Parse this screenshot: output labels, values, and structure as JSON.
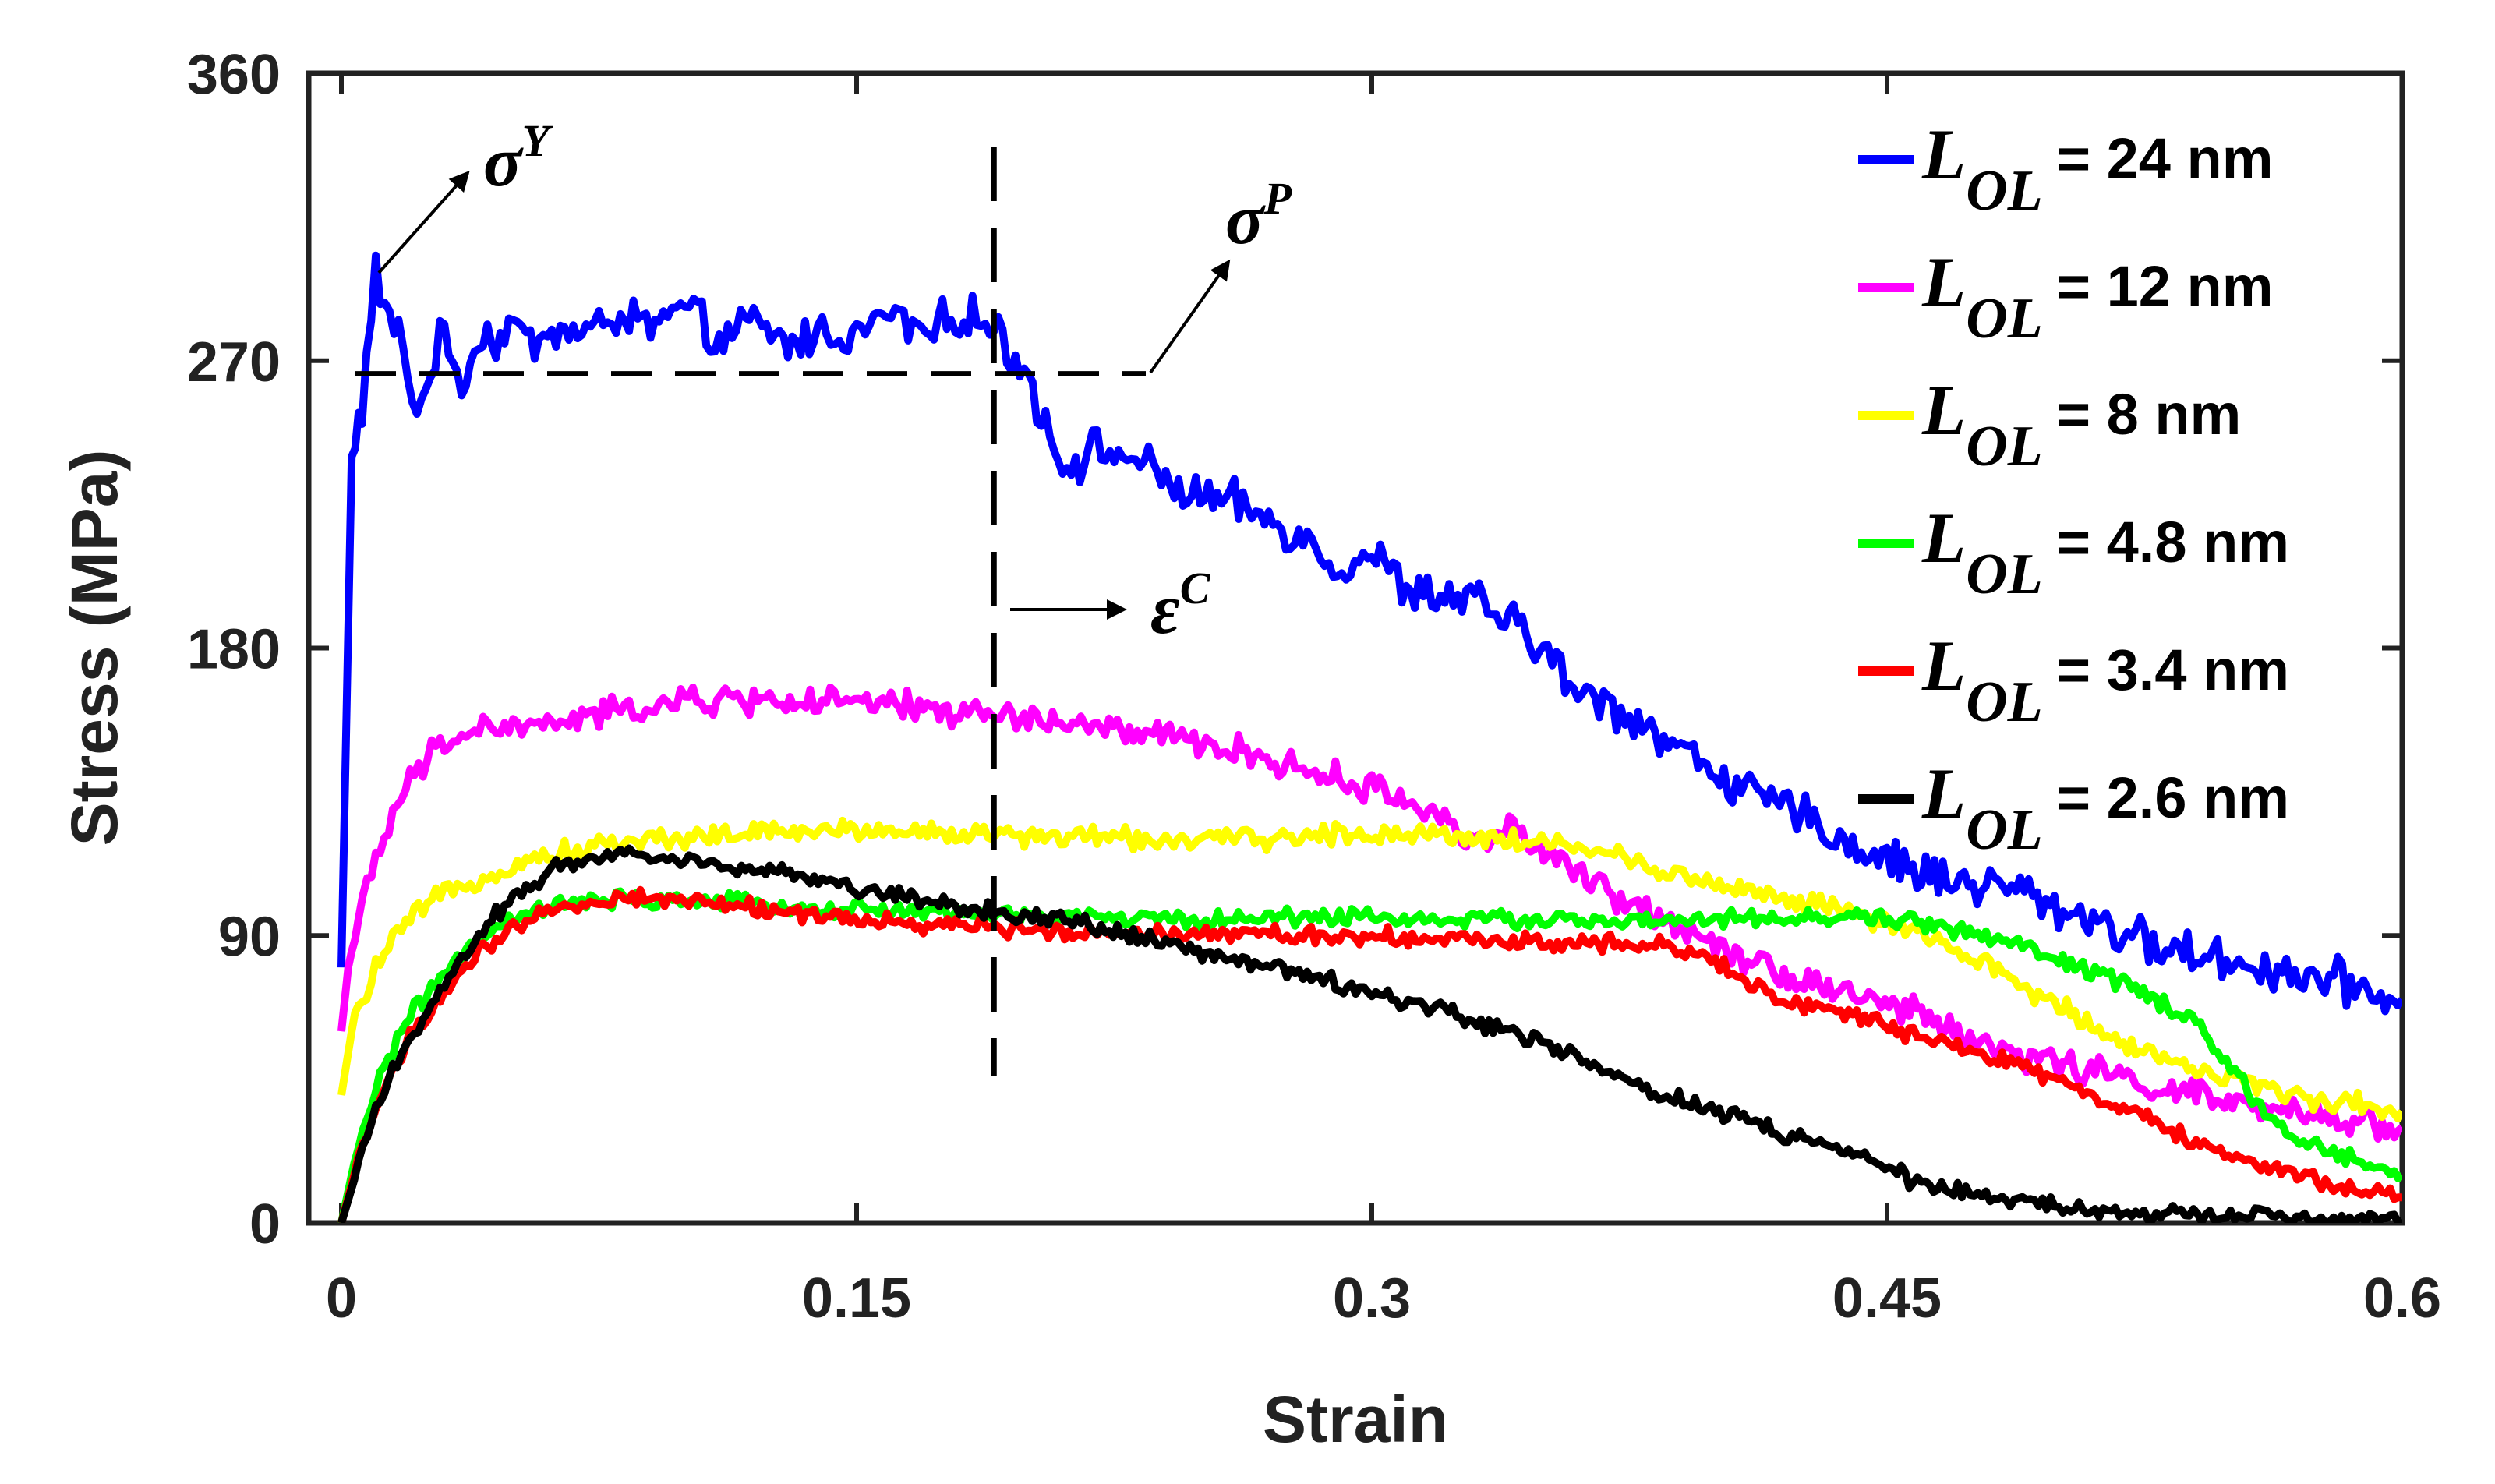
{
  "chart_data": {
    "type": "line",
    "title": "",
    "xlabel": "Strain",
    "ylabel": "Stress (MPa)",
    "xlim": [
      0,
      0.6
    ],
    "ylim": [
      0,
      360
    ],
    "xticks": [
      0,
      0.15,
      0.3,
      0.45,
      0.6
    ],
    "xtick_labels": [
      "0",
      "0.15",
      "0.3",
      "0.45",
      "0.6"
    ],
    "yticks": [
      0,
      90,
      180,
      270,
      360
    ],
    "ytick_labels": [
      "0",
      "90",
      "180",
      "270",
      "360"
    ],
    "grid": false,
    "legend_position": "top-right",
    "legend_symbol": "L",
    "legend_subscript": "OL",
    "series": [
      {
        "name": "24 nm",
        "label_suffix": "= 24 nm",
        "color": "#0000ff",
        "x": [
          0,
          0.003,
          0.006,
          0.01,
          0.014,
          0.018,
          0.022,
          0.026,
          0.03,
          0.035,
          0.04,
          0.045,
          0.05,
          0.055,
          0.06,
          0.07,
          0.08,
          0.09,
          0.1,
          0.11,
          0.12,
          0.13,
          0.14,
          0.15,
          0.16,
          0.17,
          0.18,
          0.19,
          0.2,
          0.21,
          0.22,
          0.23,
          0.24,
          0.25,
          0.26,
          0.27,
          0.28,
          0.29,
          0.3,
          0.31,
          0.32,
          0.33,
          0.34,
          0.35,
          0.36,
          0.37,
          0.38,
          0.39,
          0.4,
          0.41,
          0.42,
          0.43,
          0.44,
          0.45,
          0.46,
          0.47,
          0.48,
          0.49,
          0.5,
          0.51,
          0.52,
          0.53,
          0.54,
          0.55,
          0.56,
          0.57,
          0.58,
          0.59,
          0.6
        ],
        "y": [
          80,
          240,
          255,
          297,
          282,
          275,
          252,
          268,
          278,
          262,
          278,
          276,
          282,
          275,
          280,
          278,
          284,
          281,
          286,
          276,
          282,
          275,
          279,
          278,
          285,
          278,
          285,
          280,
          265,
          237,
          242,
          240,
          232,
          227,
          225,
          220,
          215,
          205,
          210,
          198,
          196,
          195,
          188,
          180,
          165,
          162,
          156,
          148,
          142,
          134,
          130,
          125,
          118,
          114,
          110,
          107,
          106,
          104,
          98,
          96,
          90,
          86,
          84,
          82,
          80,
          78,
          76,
          73,
          70
        ],
        "noise": 5
      },
      {
        "name": "12 nm",
        "label_suffix": "= 12 nm",
        "color": "#ff00ff",
        "x": [
          0,
          0.002,
          0.005,
          0.01,
          0.015,
          0.02,
          0.025,
          0.03,
          0.035,
          0.04,
          0.05,
          0.06,
          0.07,
          0.08,
          0.09,
          0.1,
          0.12,
          0.14,
          0.16,
          0.18,
          0.2,
          0.22,
          0.24,
          0.26,
          0.28,
          0.3,
          0.32,
          0.33,
          0.34,
          0.35,
          0.36,
          0.37,
          0.38,
          0.4,
          0.42,
          0.44,
          0.46,
          0.48,
          0.5,
          0.52,
          0.54,
          0.56,
          0.58,
          0.6
        ],
        "y": [
          60,
          80,
          95,
          112,
          128,
          138,
          145,
          150,
          153,
          155,
          155,
          156,
          158,
          160,
          162,
          163,
          164,
          163,
          162,
          160,
          158,
          155,
          152,
          148,
          142,
          136,
          128,
          118,
          125,
          115,
          110,
          102,
          98,
          88,
          78,
          72,
          65,
          55,
          50,
          45,
          40,
          35,
          33,
          30
        ],
        "noise": 3.5
      },
      {
        "name": "8 nm",
        "label_suffix": "= 8 nm",
        "color": "#ffff00",
        "x": [
          0,
          0.003,
          0.006,
          0.01,
          0.015,
          0.02,
          0.03,
          0.04,
          0.05,
          0.06,
          0.07,
          0.08,
          0.1,
          0.12,
          0.14,
          0.16,
          0.18,
          0.2,
          0.22,
          0.24,
          0.26,
          0.28,
          0.3,
          0.32,
          0.34,
          0.36,
          0.38,
          0.4,
          0.42,
          0.44,
          0.46,
          0.48,
          0.5,
          0.52,
          0.54,
          0.56,
          0.58,
          0.6
        ],
        "y": [
          40,
          60,
          70,
          80,
          88,
          95,
          103,
          108,
          112,
          115,
          117,
          119,
          121,
          122,
          123,
          123,
          122,
          121,
          121,
          120,
          120,
          121,
          122,
          122,
          120,
          118,
          112,
          106,
          102,
          97,
          90,
          80,
          68,
          56,
          48,
          42,
          38,
          35
        ],
        "noise": 2.5
      },
      {
        "name": "4.8 nm",
        "label_suffix": "= 4.8 nm",
        "color": "#00ff00",
        "x": [
          0,
          0.005,
          0.01,
          0.015,
          0.02,
          0.03,
          0.04,
          0.05,
          0.06,
          0.07,
          0.08,
          0.1,
          0.12,
          0.14,
          0.16,
          0.18,
          0.2,
          0.22,
          0.24,
          0.26,
          0.28,
          0.3,
          0.32,
          0.34,
          0.36,
          0.38,
          0.4,
          0.42,
          0.44,
          0.46,
          0.48,
          0.5,
          0.52,
          0.54,
          0.55,
          0.56,
          0.57,
          0.58,
          0.6
        ],
        "y": [
          0,
          25,
          42,
          55,
          65,
          78,
          88,
          95,
          99,
          100,
          101,
          101,
          100,
          98,
          98,
          97,
          96,
          96,
          95,
          95,
          96,
          96,
          95,
          95,
          95,
          94,
          95,
          95,
          96,
          94,
          90,
          82,
          75,
          62,
          48,
          35,
          25,
          22,
          15
        ],
        "noise": 2
      },
      {
        "name": "3.4 nm",
        "label_suffix": "= 3.4 nm",
        "color": "#ff0000",
        "x": [
          0,
          0.005,
          0.01,
          0.015,
          0.02,
          0.03,
          0.04,
          0.05,
          0.06,
          0.07,
          0.08,
          0.1,
          0.12,
          0.14,
          0.16,
          0.18,
          0.2,
          0.22,
          0.24,
          0.26,
          0.28,
          0.3,
          0.32,
          0.34,
          0.36,
          0.38,
          0.39,
          0.4,
          0.41,
          0.42,
          0.44,
          0.46,
          0.48,
          0.5,
          0.52,
          0.54,
          0.56,
          0.58,
          0.6
        ],
        "y": [
          0,
          20,
          36,
          48,
          58,
          72,
          84,
          92,
          97,
          100,
          102,
          101,
          99,
          96,
          94,
          93,
          92,
          91,
          91,
          91,
          90,
          90,
          89,
          88,
          88,
          88,
          86,
          82,
          75,
          70,
          65,
          58,
          52,
          45,
          35,
          25,
          18,
          12,
          8
        ],
        "noise": 2
      },
      {
        "name": "2.6 nm",
        "label_suffix": "= 2.6 nm",
        "color": "#000000",
        "x": [
          0,
          0.005,
          0.01,
          0.015,
          0.02,
          0.03,
          0.04,
          0.05,
          0.06,
          0.07,
          0.08,
          0.09,
          0.1,
          0.12,
          0.14,
          0.16,
          0.18,
          0.2,
          0.22,
          0.24,
          0.26,
          0.28,
          0.3,
          0.32,
          0.34,
          0.36,
          0.38,
          0.4,
          0.42,
          0.44,
          0.46,
          0.48,
          0.5,
          0.52,
          0.55,
          0.58,
          0.6
        ],
        "y": [
          0,
          18,
          35,
          48,
          58,
          75,
          90,
          102,
          110,
          114,
          116,
          115,
          114,
          111,
          107,
          103,
          99,
          96,
          93,
          88,
          82,
          78,
          72,
          67,
          60,
          52,
          42,
          35,
          28,
          22,
          12,
          8,
          5,
          3,
          2,
          1,
          1
        ],
        "noise": 2
      }
    ],
    "annotations": [
      {
        "symbol": "σ",
        "superscript": "Y",
        "name": "yield-stress",
        "at": [
          0.01,
          297
        ]
      },
      {
        "symbol": "σ",
        "superscript": "P",
        "name": "plateau-stress",
        "at": [
          0.19,
          266
        ]
      },
      {
        "symbol": "ε",
        "superscript": "C",
        "name": "critical-strain",
        "at": [
          0.19,
          194
        ]
      }
    ],
    "reference_lines": {
      "plateau_stress": 266,
      "critical_strain": 0.19
    }
  }
}
